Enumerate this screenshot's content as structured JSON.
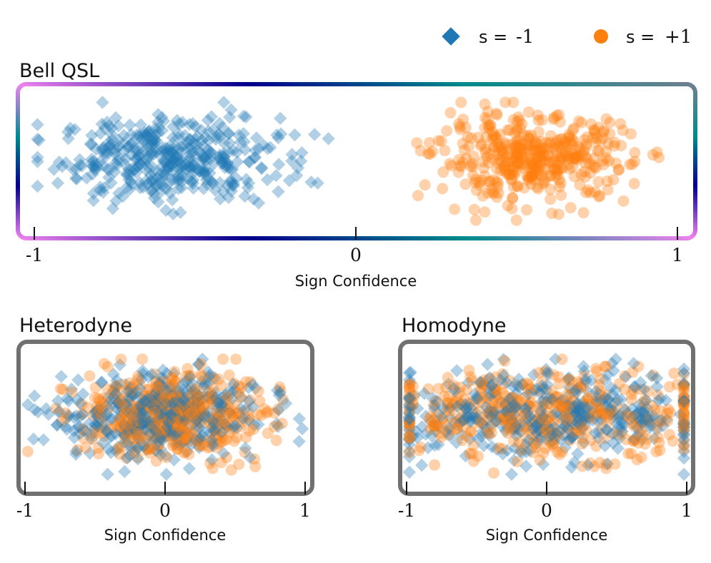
{
  "legend": {
    "items": [
      {
        "symbol": "s =",
        "value": "-1",
        "marker": "diamond",
        "color": "#1f77b4"
      },
      {
        "symbol": "s =",
        "value": "+1",
        "marker": "circle",
        "color": "#ff7f0e"
      }
    ]
  },
  "colors": {
    "minus": "#1f77b4",
    "plus": "#ff7f0e",
    "frame_gray": "#707070",
    "gradient": [
      "#ee82ee",
      "#00008b",
      "#008b8b",
      "#ee82ee",
      "#00008b",
      "#008b8b",
      "#708090"
    ]
  },
  "chart_data": [
    {
      "type": "scatter",
      "title": "Bell QSL",
      "xlabel": "Sign Confidence",
      "ylabel": "",
      "xlim": [
        -1,
        1
      ],
      "xticks": [
        "-1",
        "0",
        "1"
      ],
      "ylim": [
        0,
        1
      ],
      "frame": "gradient",
      "grid": false,
      "series": [
        {
          "name": "s = -1",
          "marker": "diamond",
          "alpha": 0.35,
          "count": 420,
          "distribution": {
            "x_mean": -0.58,
            "x_sd": 0.17,
            "x_min": -0.99,
            "x_max": -0.01,
            "y_mean": 0.52,
            "y_sd": 0.17
          }
        },
        {
          "name": "s = +1",
          "marker": "circle",
          "alpha": 0.35,
          "count": 420,
          "distribution": {
            "x_mean": 0.55,
            "x_sd": 0.15,
            "x_min": 0.01,
            "x_max": 0.99,
            "y_mean": 0.52,
            "y_sd": 0.17
          }
        }
      ]
    },
    {
      "type": "scatter",
      "title": "Heterodyne",
      "xlabel": "Sign Confidence",
      "ylabel": "",
      "xlim": [
        -1,
        1
      ],
      "xticks": [
        "-1",
        "0",
        "1"
      ],
      "ylim": [
        0,
        1
      ],
      "frame": "gray",
      "grid": false,
      "series": [
        {
          "name": "s = -1",
          "marker": "diamond",
          "alpha": 0.35,
          "count": 420,
          "distribution": {
            "x_mean": -0.03,
            "x_sd": 0.34,
            "x_min": -0.98,
            "x_max": 0.98,
            "y_mean": 0.52,
            "y_sd": 0.18
          }
        },
        {
          "name": "s = +1",
          "marker": "circle",
          "alpha": 0.35,
          "count": 420,
          "distribution": {
            "x_mean": 0.03,
            "x_sd": 0.34,
            "x_min": -0.98,
            "x_max": 0.98,
            "y_mean": 0.52,
            "y_sd": 0.18
          }
        }
      ]
    },
    {
      "type": "scatter",
      "title": "Homodyne",
      "xlabel": "Sign Confidence",
      "ylabel": "",
      "xlim": [
        -1,
        1
      ],
      "xticks": [
        "-1",
        "0",
        "1"
      ],
      "ylim": [
        0,
        1
      ],
      "frame": "gray",
      "grid": false,
      "series": [
        {
          "name": "s = -1",
          "marker": "diamond",
          "alpha": 0.35,
          "count": 420,
          "distribution": {
            "x_mean": 0.0,
            "x_sd": 0.6,
            "x_min": -0.98,
            "x_max": 0.98,
            "y_mean": 0.52,
            "y_sd": 0.18
          }
        },
        {
          "name": "s = +1",
          "marker": "circle",
          "alpha": 0.35,
          "count": 420,
          "distribution": {
            "x_mean": 0.0,
            "x_sd": 0.6,
            "x_min": -0.98,
            "x_max": 0.98,
            "y_mean": 0.52,
            "y_sd": 0.18
          }
        }
      ]
    }
  ]
}
